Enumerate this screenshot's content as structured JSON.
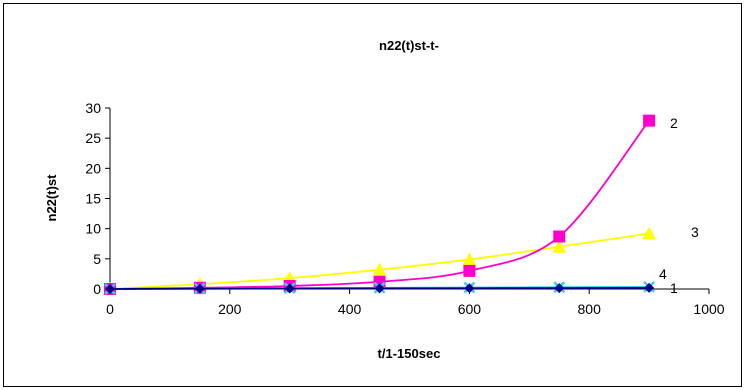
{
  "chart_data": {
    "type": "line",
    "title": "n22(t)st-t-",
    "xlabel": "t/1-150sec",
    "ylabel": "n22(t)st",
    "xlim": [
      0,
      1000
    ],
    "ylim": [
      0,
      30
    ],
    "x_ticks": [
      0,
      200,
      400,
      600,
      800,
      1000
    ],
    "y_ticks": [
      0,
      5,
      10,
      15,
      20,
      25,
      30
    ],
    "grid": false,
    "legend": "none",
    "series": [
      {
        "name": "1",
        "color": "#000080",
        "marker": "diamond",
        "x": [
          0,
          150,
          300,
          450,
          600,
          750,
          900
        ],
        "y": [
          0,
          0.05,
          0.08,
          0.1,
          0.12,
          0.15,
          0.18
        ]
      },
      {
        "name": "2",
        "color": "#ff00cc",
        "marker": "square",
        "x": [
          0,
          150,
          300,
          450,
          600,
          750,
          900
        ],
        "y": [
          0,
          0.2,
          0.5,
          1.2,
          3.0,
          8.7,
          27.9
        ]
      },
      {
        "name": "3",
        "color": "#ffff00",
        "marker": "triangle",
        "x": [
          0,
          150,
          300,
          450,
          600,
          750,
          900
        ],
        "y": [
          0,
          0.8,
          1.8,
          3.2,
          4.9,
          7.0,
          9.2
        ]
      },
      {
        "name": "4",
        "color": "#33ccff",
        "marker": "x",
        "x": [
          0,
          150,
          300,
          450,
          600,
          750,
          900
        ],
        "y": [
          0,
          0.1,
          0.15,
          0.2,
          0.25,
          0.3,
          0.35
        ]
      }
    ]
  }
}
